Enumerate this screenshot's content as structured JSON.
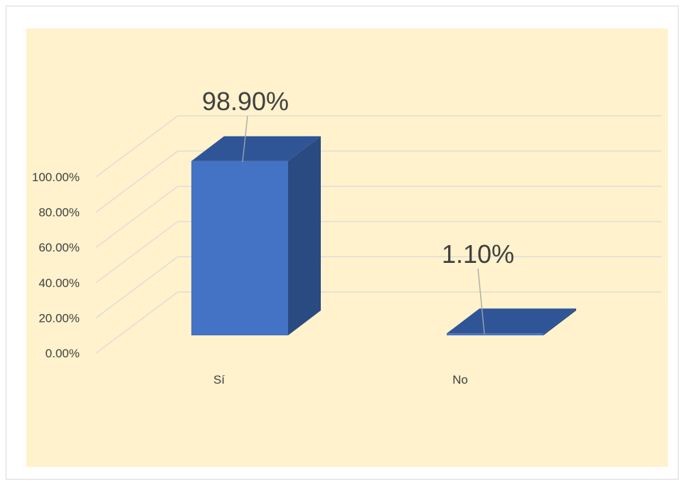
{
  "chart_data": {
    "type": "bar",
    "style": "3d-column",
    "categories": [
      "Sí",
      "No"
    ],
    "series": [
      {
        "values": [
          0.989,
          0.011
        ],
        "data_labels": [
          "98.90%",
          "1.10%"
        ]
      }
    ],
    "ylim": [
      0,
      1
    ],
    "yticks": [
      0,
      0.2,
      0.4,
      0.6,
      0.8,
      1.0
    ],
    "ytick_labels": [
      "0.00%",
      "20.00%",
      "40.00%",
      "60.00%",
      "80.00%",
      "100.00%"
    ],
    "title": "",
    "xlabel": "",
    "ylabel": "",
    "grid": true,
    "legend": "none",
    "colors": {
      "plot_background": "#fff2cc",
      "bar_front": "#4472c4",
      "bar_top": "#2f5597",
      "bar_side": "#2a4a82",
      "gridline": "#d9d9d9",
      "text": "#404040"
    }
  }
}
